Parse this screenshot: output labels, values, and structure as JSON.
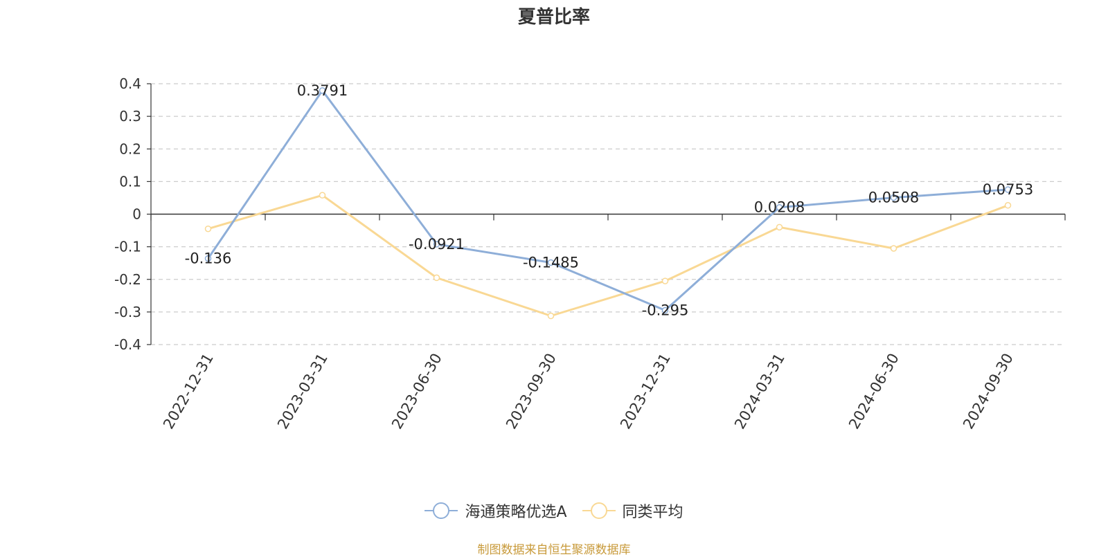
{
  "chart_data": {
    "type": "line",
    "title": "夏普比率",
    "categories": [
      "2022-12-31",
      "2023-03-31",
      "2023-06-30",
      "2023-09-30",
      "2023-12-31",
      "2024-03-31",
      "2024-06-30",
      "2024-09-30"
    ],
    "ylim": [
      -0.4,
      0.4
    ],
    "yticks": [
      "0.4",
      "0.3",
      "0.2",
      "0.1",
      "0",
      "-0.1",
      "-0.2",
      "-0.3",
      "-0.4"
    ],
    "ytick_values": [
      0.4,
      0.3,
      0.2,
      0.1,
      0,
      -0.1,
      -0.2,
      -0.3,
      -0.4
    ],
    "grid": "horizontal dashed",
    "legend_position": "bottom",
    "series": [
      {
        "name": "海通策略优选A",
        "color": "#8eaed8",
        "values": [
          -0.136,
          0.3791,
          -0.0921,
          -0.1485,
          -0.295,
          0.0208,
          0.0508,
          0.0753
        ],
        "labels": [
          "-0.136",
          "0.3791",
          "-0.0921",
          "-0.1485",
          "-0.295",
          "0.0208",
          "0.0508",
          "0.0753"
        ]
      },
      {
        "name": "同类平均",
        "color": "#f9d894",
        "values": [
          -0.045,
          0.058,
          -0.195,
          -0.312,
          -0.205,
          -0.04,
          -0.105,
          0.027
        ]
      }
    ]
  },
  "footer": {
    "source": "制图数据来自恒生聚源数据库"
  }
}
